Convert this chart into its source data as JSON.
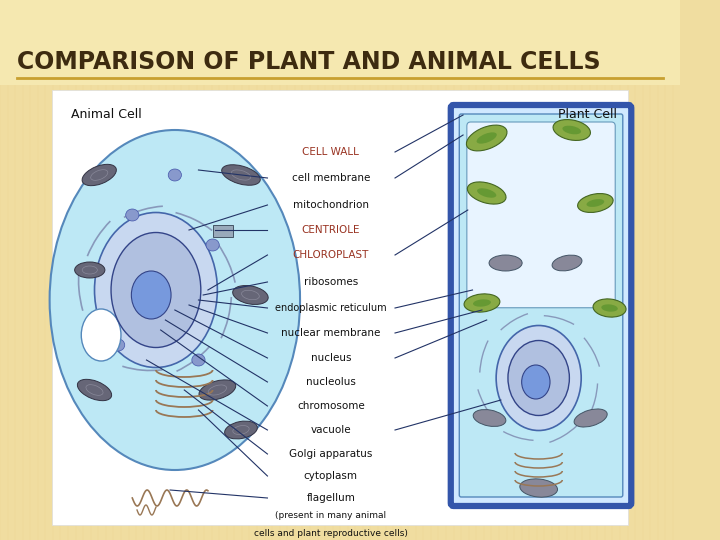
{
  "title": "COMPARISON OF PLANT AND ANIMAL CELLS",
  "title_color": "#3d2b10",
  "title_fontsize": 17,
  "bg_color": "#f0dda0",
  "stripe_color": "#e8d080",
  "underline_color": "#c8a030",
  "panel_bg": "#ffffff",
  "cell_fill": "#bde8f5",
  "cell_edge": "#5588bb",
  "nucleus_fill": "#c0cce8",
  "nucleus_inner_fill": "#a8bade",
  "nucleolus_fill": "#6688cc",
  "mito_fill": "#7788aa",
  "vacuole_fill": "#ffffff",
  "plant_wall_color": "#3355aa",
  "chloro_fill": "#88aa55",
  "red_label": "#993322",
  "black_label": "#111111",
  "line_color": "#223366",
  "animal_label": "Animal Cell",
  "plant_label": "Plant Cell"
}
